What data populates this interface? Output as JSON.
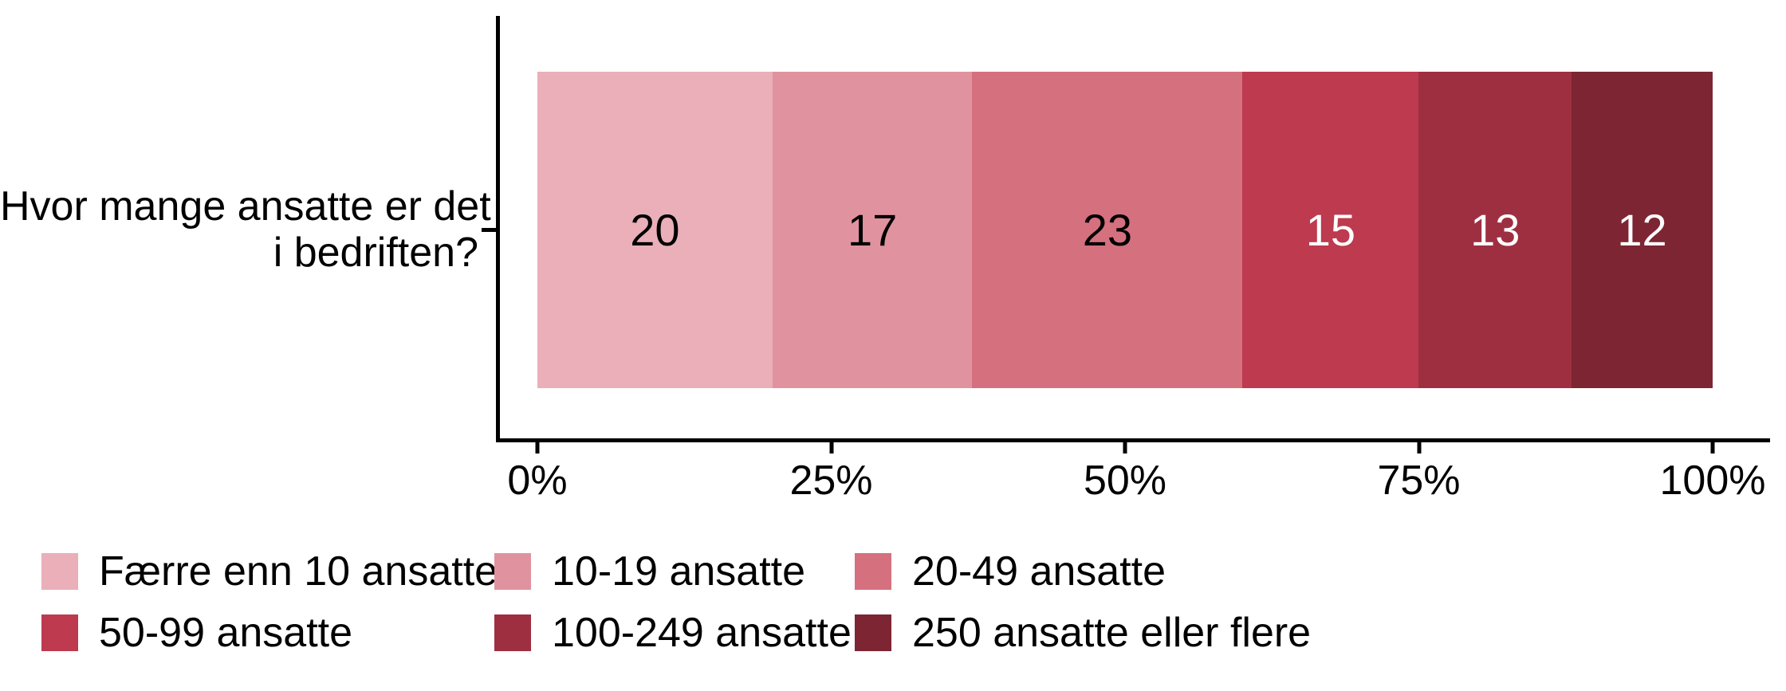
{
  "chart_data": {
    "type": "bar",
    "orientation": "horizontal-stacked",
    "title": "",
    "question": "Hvor mange ansatte er det i bedriften?",
    "question_lines": [
      "Hvor mange ansatte er det",
      "i bedriften?"
    ],
    "categories": [
      "Færre enn 10 ansatte",
      "10-19 ansatte",
      "20-49 ansatte",
      "50-99 ansatte",
      "100-249 ansatte",
      "250 ansatte eller flere"
    ],
    "values": [
      20,
      17,
      23,
      15,
      13,
      12
    ],
    "colors": [
      "#EAAFB8",
      "#E0939F",
      "#D5707F",
      "#BD3A4F",
      "#9E2F41",
      "#7D2533"
    ],
    "label_colors": [
      "#000000",
      "#000000",
      "#000000",
      "#FFFFFF",
      "#FFFFFF",
      "#FFFFFF"
    ],
    "x_ticks": [
      "0%",
      "25%",
      "50%",
      "75%",
      "100%"
    ],
    "x_tick_values": [
      0,
      25,
      50,
      75,
      100
    ],
    "xlim": [
      0,
      100
    ],
    "xlabel": "",
    "ylabel": "",
    "grid": false,
    "legend_position": "bottom",
    "legend_rows": 2,
    "legend_columns": 3
  },
  "style_colors": {
    "background": "#FFFFFF",
    "axis": "#000000",
    "text": "#000000"
  }
}
